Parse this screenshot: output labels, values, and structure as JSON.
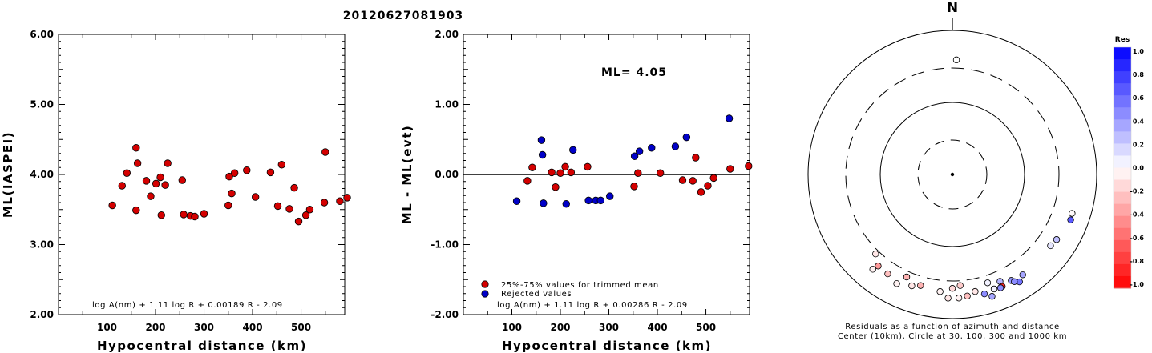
{
  "title": "20120627081903",
  "chart_data": [
    {
      "type": "scatter",
      "xlabel": "Hypocentral distance (km)",
      "ylabel": "ML(IASPEI)",
      "xlim": [
        0,
        590
      ],
      "ylim": [
        2.0,
        6.0
      ],
      "xticks": [
        "100",
        "200",
        "300",
        "400",
        "500"
      ],
      "yticks": [
        "2.00",
        "3.00",
        "4.00",
        "5.00",
        "6.00"
      ],
      "formula": "log A(nm) + 1.11 log R + 0.00189 R - 2.09",
      "series": [
        {
          "color": "#d40000",
          "points": [
            [
              111,
              3.56
            ],
            [
              131,
              3.84
            ],
            [
              141,
              4.02
            ],
            [
              160,
              4.38
            ],
            [
              160,
              3.49
            ],
            [
              163,
              4.16
            ],
            [
              181,
              3.91
            ],
            [
              190,
              3.69
            ],
            [
              201,
              3.87
            ],
            [
              210,
              3.96
            ],
            [
              212,
              3.42
            ],
            [
              220,
              3.85
            ],
            [
              225,
              4.16
            ],
            [
              255,
              3.92
            ],
            [
              258,
              3.43
            ],
            [
              272,
              3.41
            ],
            [
              281,
              3.4
            ],
            [
              300,
              3.44
            ],
            [
              350,
              3.56
            ],
            [
              352,
              3.97
            ],
            [
              357,
              3.73
            ],
            [
              363,
              4.02
            ],
            [
              388,
              4.06
            ],
            [
              406,
              3.68
            ],
            [
              437,
              4.03
            ],
            [
              452,
              3.55
            ],
            [
              460,
              4.14
            ],
            [
              476,
              3.51
            ],
            [
              486,
              3.81
            ],
            [
              495,
              3.33
            ],
            [
              510,
              3.42
            ],
            [
              518,
              3.5
            ],
            [
              548,
              3.6
            ],
            [
              550,
              4.32
            ],
            [
              580,
              3.62
            ],
            [
              595,
              3.67
            ]
          ]
        }
      ]
    },
    {
      "type": "scatter",
      "xlabel": "Hypocentral distance (km)",
      "ylabel": "ML - ML(evt)",
      "xlim": [
        0,
        590
      ],
      "ylim": [
        -2.0,
        2.0
      ],
      "xticks": [
        "100",
        "200",
        "300",
        "400",
        "500"
      ],
      "yticks": [
        "-2.00",
        "-1.00",
        "0.00",
        "1.00",
        "2.00"
      ],
      "ml_label": "ML= 4.05",
      "formula": "log A(nm) + 1.11 log R + 0.00286 R - 2.09",
      "legend_position": "bottom-left",
      "series": [
        {
          "name": "25%-75% values for trimmed mean",
          "color": "#d40000",
          "points": [
            [
              132,
              -0.09
            ],
            [
              142,
              0.1
            ],
            [
              182,
              0.03
            ],
            [
              190,
              -0.18
            ],
            [
              200,
              0.02
            ],
            [
              210,
              0.11
            ],
            [
              222,
              0.03
            ],
            [
              256,
              0.11
            ],
            [
              352,
              -0.17
            ],
            [
              360,
              0.02
            ],
            [
              406,
              0.02
            ],
            [
              452,
              -0.08
            ],
            [
              473,
              -0.09
            ],
            [
              479,
              0.24
            ],
            [
              490,
              -0.25
            ],
            [
              504,
              -0.16
            ],
            [
              516,
              -0.05
            ],
            [
              550,
              0.08
            ],
            [
              588,
              0.12
            ]
          ]
        },
        {
          "name": "Rejected values",
          "color": "#0000c8",
          "points": [
            [
              110,
              -0.38
            ],
            [
              161,
              0.49
            ],
            [
              163,
              0.28
            ],
            [
              165,
              -0.41
            ],
            [
              212,
              -0.42
            ],
            [
              226,
              0.35
            ],
            [
              258,
              -0.37
            ],
            [
              273,
              -0.37
            ],
            [
              283,
              -0.37
            ],
            [
              302,
              -0.31
            ],
            [
              353,
              0.26
            ],
            [
              363,
              0.33
            ],
            [
              388,
              0.38
            ],
            [
              437,
              0.4
            ],
            [
              460,
              0.53
            ],
            [
              548,
              0.8
            ]
          ]
        }
      ]
    },
    {
      "type": "scatter",
      "subtype": "polar",
      "north_label": "N",
      "caption_line1": "Residuals as a function of azimuth and distance",
      "caption_line2": "Center (10km), Circle at 30, 100, 300 and 1000 km",
      "colorbar_title": "Res",
      "colorbar_ticks": [
        "1.0",
        "0.8",
        "0.6",
        "0.4",
        "0.2",
        "0.0",
        "-0.2",
        "-0.4",
        "-0.6",
        "-0.8",
        "-1.0"
      ],
      "colorbar_colors": {
        "positive": "#0000ff",
        "zero": "#ffffff",
        "negative": "#ff0000"
      },
      "points": [
        {
          "az": 2,
          "dist": 390,
          "res": 0.0
        },
        {
          "az": 122,
          "dist": 505,
          "res": 0.25
        },
        {
          "az": 126,
          "dist": 480,
          "res": 0.1
        },
        {
          "az": 111,
          "dist": 570,
          "res": 0.65
        },
        {
          "az": 108,
          "dist": 555,
          "res": -0.02
        },
        {
          "az": 148,
          "dist": 570,
          "res": 0.55
        },
        {
          "az": 145,
          "dist": 500,
          "res": 0.35
        },
        {
          "az": 151,
          "dist": 480,
          "res": 0.4
        },
        {
          "az": 150,
          "dist": 520,
          "res": 0.45
        },
        {
          "az": 156,
          "dist": 420,
          "res": 0.3
        },
        {
          "az": 156,
          "dist": 500,
          "res": -0.85
        },
        {
          "az": 157,
          "dist": 510,
          "res": 0.45
        },
        {
          "az": 160,
          "dist": 490,
          "res": 0.05
        },
        {
          "az": 162,
          "dist": 380,
          "res": 0.05
        },
        {
          "az": 165,
          "dist": 520,
          "res": 0.45
        },
        {
          "az": 162,
          "dist": 600,
          "res": 0.35
        },
        {
          "az": 169,
          "dist": 450,
          "res": -0.1
        },
        {
          "az": 173,
          "dist": 500,
          "res": -0.25
        },
        {
          "az": 176,
          "dist": 350,
          "res": -0.2
        },
        {
          "az": 180,
          "dist": 380,
          "res": -0.15
        },
        {
          "az": 186,
          "dist": 430,
          "res": -0.05
        },
        {
          "az": 177,
          "dist": 520,
          "res": -0.05
        },
        {
          "az": 182,
          "dist": 520,
          "res": -0.1
        },
        {
          "az": 196,
          "dist": 400,
          "res": -0.3
        },
        {
          "az": 200,
          "dist": 440,
          "res": -0.1
        },
        {
          "az": 204,
          "dist": 360,
          "res": -0.3
        },
        {
          "az": 207,
          "dist": 500,
          "res": -0.05
        },
        {
          "az": 213,
          "dist": 440,
          "res": -0.25
        },
        {
          "az": 219,
          "dist": 430,
          "res": -0.4
        },
        {
          "az": 220,
          "dist": 520,
          "res": -0.05
        },
        {
          "az": 224,
          "dist": 340,
          "res": -0.1
        }
      ]
    }
  ]
}
